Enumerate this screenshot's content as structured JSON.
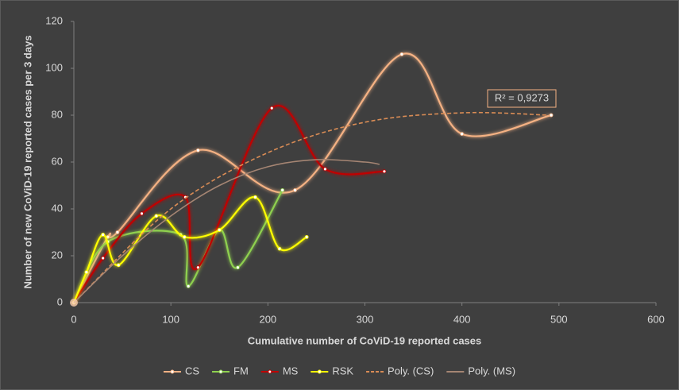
{
  "chart_data": {
    "type": "scatter",
    "x_label": "Cumulative number of CoViD-19 reported cases",
    "y_label": "Number of  new CoViD-19 reported cases per 3 days",
    "annotation": "R² = 0,9273",
    "xlim": [
      0,
      600
    ],
    "xticks": [
      0,
      100,
      200,
      300,
      400,
      500,
      600
    ],
    "ylim": [
      0,
      120
    ],
    "yticks": [
      0,
      20,
      40,
      60,
      80,
      100,
      120
    ],
    "grid": false,
    "legend": "bottom",
    "series": [
      {
        "name": "CS",
        "color": "#f4b183",
        "style": "smooth",
        "markers": true,
        "x": [
          0,
          35,
          45,
          128,
          228,
          338,
          400,
          492
        ],
        "values": [
          0,
          28,
          30,
          65,
          48,
          106,
          72,
          80
        ]
      },
      {
        "name": "FM",
        "color": "#8fd14f",
        "style": "smooth",
        "markers": true,
        "x": [
          0,
          35,
          110,
          118,
          150,
          169,
          215
        ],
        "values": [
          0,
          26,
          29,
          7,
          31,
          15,
          48
        ]
      },
      {
        "name": "MS",
        "color": "#c00000",
        "style": "smooth",
        "markers": true,
        "x": [
          0,
          30,
          70,
          115,
          128,
          204,
          259,
          320
        ],
        "values": [
          0,
          19,
          38,
          45,
          15,
          83,
          57,
          56
        ]
      },
      {
        "name": "RSK",
        "color": "#ffff00",
        "style": "smooth",
        "markers": true,
        "x": [
          0,
          13,
          30,
          46,
          85,
          114,
          150,
          187,
          212,
          240
        ],
        "values": [
          0,
          13,
          29,
          16,
          37,
          28,
          31,
          45,
          23,
          28
        ]
      },
      {
        "name": "Poly. (CS)",
        "color": "#d98c55",
        "style": "dashed",
        "markers": false,
        "x": [
          0,
          100,
          200,
          300,
          400,
          490
        ],
        "values": [
          0,
          40,
          64,
          77,
          81,
          80
        ]
      },
      {
        "name": "Poly. (MS)",
        "color": "#a58573",
        "style": "solid",
        "markers": false,
        "x": [
          0,
          50,
          100,
          150,
          200,
          250,
          300,
          315
        ],
        "values": [
          0,
          20,
          37,
          50,
          58,
          61,
          60,
          59
        ]
      }
    ]
  }
}
